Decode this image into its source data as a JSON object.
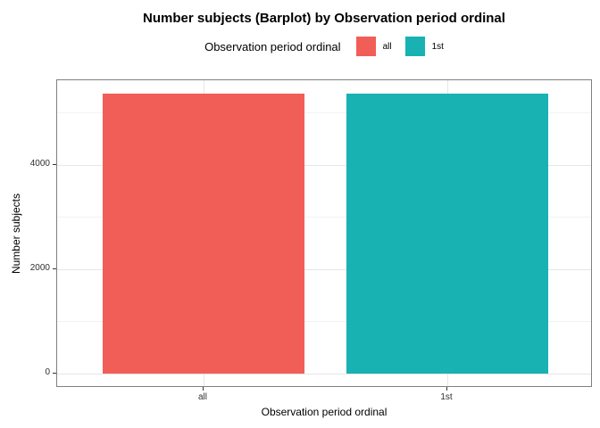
{
  "chart_data": {
    "type": "bar",
    "title": "Number subjects (Barplot) by Observation period ordinal",
    "xlabel": "Observation period ordinal",
    "ylabel": "Number subjects",
    "categories": [
      "all",
      "1st"
    ],
    "values": [
      5370,
      5370
    ],
    "bar_colors": [
      "#F15E57",
      "#18B2B2"
    ],
    "ylim": [
      0,
      5630
    ],
    "yticks_major": [
      {
        "value": 0,
        "label": "0"
      },
      {
        "value": 2000,
        "label": "2000"
      },
      {
        "value": 4000,
        "label": "4000"
      }
    ],
    "yticks_minor": [
      1000,
      3000,
      5000
    ],
    "grid": true,
    "legend_position": "top"
  },
  "legend": {
    "title": "Observation period ordinal",
    "items": [
      {
        "label": "all",
        "color": "#F15E57"
      },
      {
        "label": "1st",
        "color": "#18B2B2"
      }
    ]
  },
  "colors": {
    "panel_border": "#7f7f7f",
    "grid_major": "#e6e6e6",
    "grid_minor": "#f2f2f2",
    "tick": "#333333"
  }
}
